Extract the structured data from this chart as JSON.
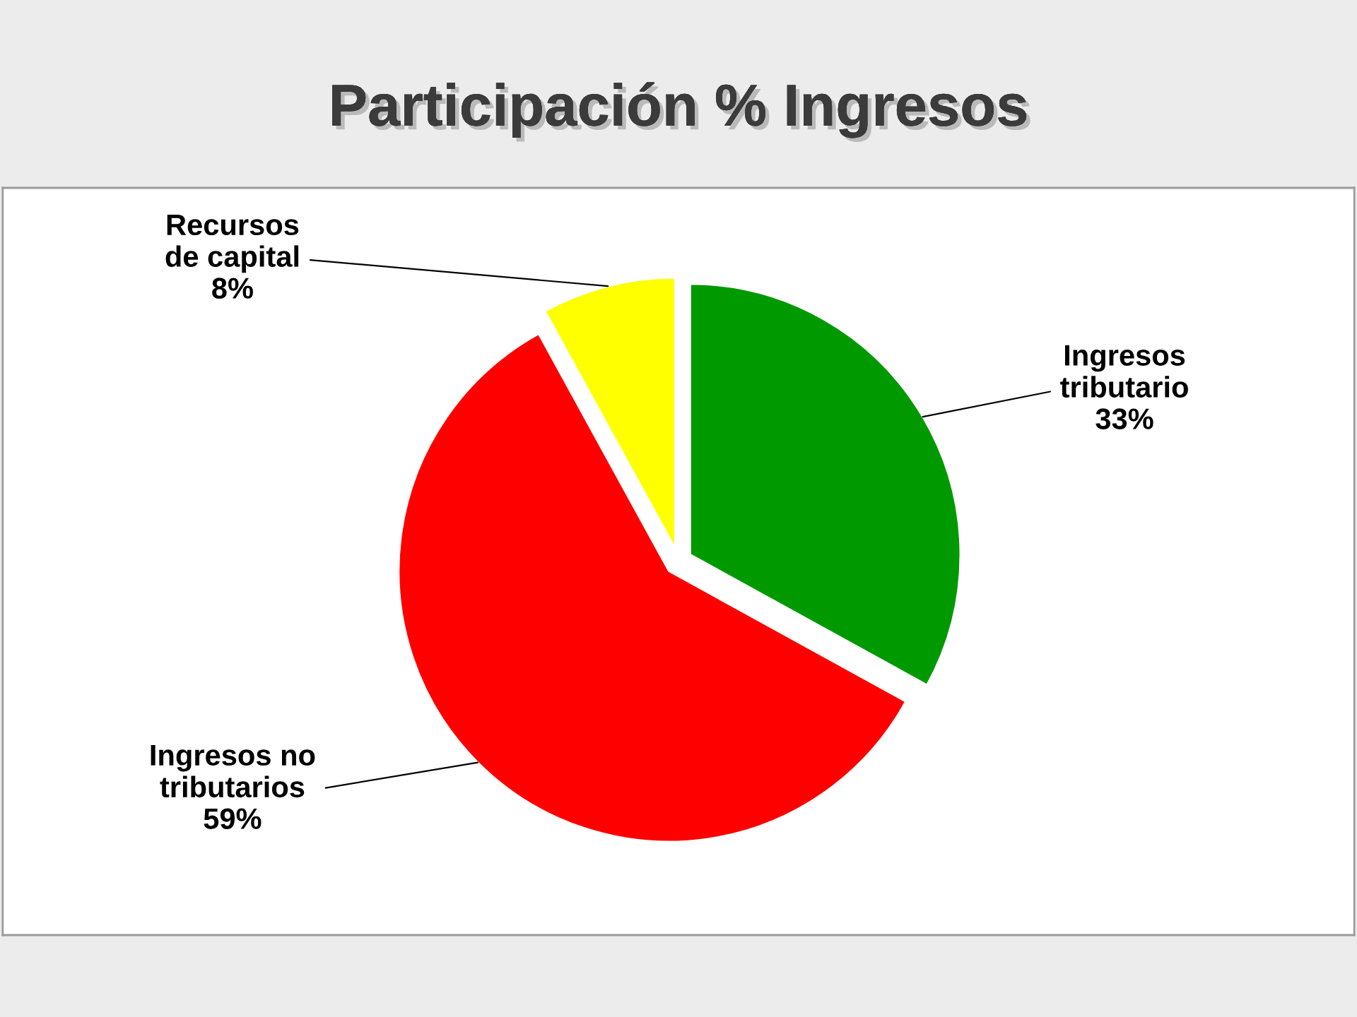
{
  "chart_data": {
    "type": "pie",
    "title": "Participación % Ingresos",
    "categories": [
      "Ingresos tributario",
      "Ingresos no tributarios",
      "Recursos de capital"
    ],
    "values": [
      33,
      59,
      8
    ],
    "value_labels": [
      "33%",
      "59%",
      "8%"
    ],
    "colors": [
      "#009900",
      "#ff0000",
      "#ffff00"
    ]
  }
}
